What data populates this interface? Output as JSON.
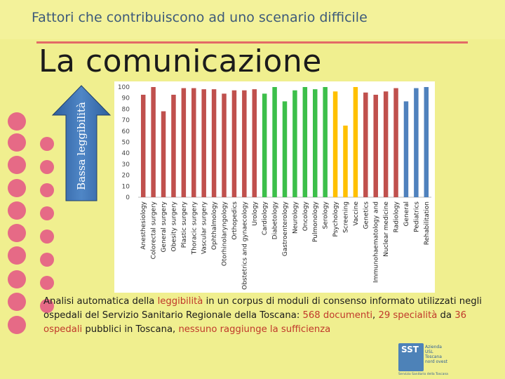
{
  "header": {
    "title": "Fattori che contribuiscono ad uno scenario difficile"
  },
  "slide": {
    "title": "La comunicazione"
  },
  "arrow": {
    "label": "Bassa leggibilità"
  },
  "caption": {
    "part1": "Analisi automatica della ",
    "hl1": "leggibilità",
    "part2": " in un corpus di moduli di consenso informato utilizzati negli ospedali del Servizio Sanitario Regionale della Toscana: ",
    "hl2": "568 documenti",
    "part3": ", ",
    "hl3": "29 specialità",
    "part4": " da ",
    "hl4": "36 ospedali",
    "part5": " pubblici in Toscana, ",
    "hl5": "nessuno raggiunge la sufficienza"
  },
  "logo": {
    "mark": "SST",
    "text": "Azienda USL Toscana nord ovest",
    "sub": "Servizio Sanitario della Toscana"
  },
  "colors": {
    "red": "#c0504d",
    "green": "#3cbf4a",
    "yellow": "#ffc000",
    "blue": "#4f81bd"
  },
  "chart_data": {
    "type": "bar",
    "ylim": [
      0,
      100
    ],
    "yticks": [
      0,
      10,
      20,
      30,
      40,
      50,
      60,
      70,
      80,
      90,
      100
    ],
    "grid": false,
    "categories": [
      "Anesthesiology",
      "Colorectal surgery",
      "General surgery",
      "Obesity surgery",
      "Plastic surgery",
      "Thoracic surgery",
      "Vascular surgery",
      "Ophthalmology",
      "Otorhinolaryngology",
      "Orthopedics",
      "Obstetrics and gynaecology",
      "Urology",
      "Cardiology",
      "Diabetology",
      "Gastroenterology",
      "Neurology",
      "Oncology",
      "Pulmonology",
      "Serology",
      "Psychology",
      "Screening",
      "Vaccine",
      "Genetics",
      "Immunohaematology and",
      "Nuclear medicine",
      "Radiology",
      "General",
      "Pediatrics",
      "Rehabilitation"
    ],
    "values": [
      93,
      100,
      78,
      93,
      99,
      99,
      98,
      98,
      94,
      97,
      97,
      98,
      94,
      100,
      87,
      97,
      100,
      98,
      100,
      96,
      65,
      100,
      95,
      93,
      96,
      99,
      87,
      99,
      100
    ],
    "colors": [
      "red",
      "red",
      "red",
      "red",
      "red",
      "red",
      "red",
      "red",
      "red",
      "red",
      "red",
      "red",
      "green",
      "green",
      "green",
      "green",
      "green",
      "green",
      "green",
      "yellow",
      "yellow",
      "yellow",
      "red",
      "red",
      "red",
      "red",
      "blue",
      "blue",
      "blue"
    ]
  }
}
